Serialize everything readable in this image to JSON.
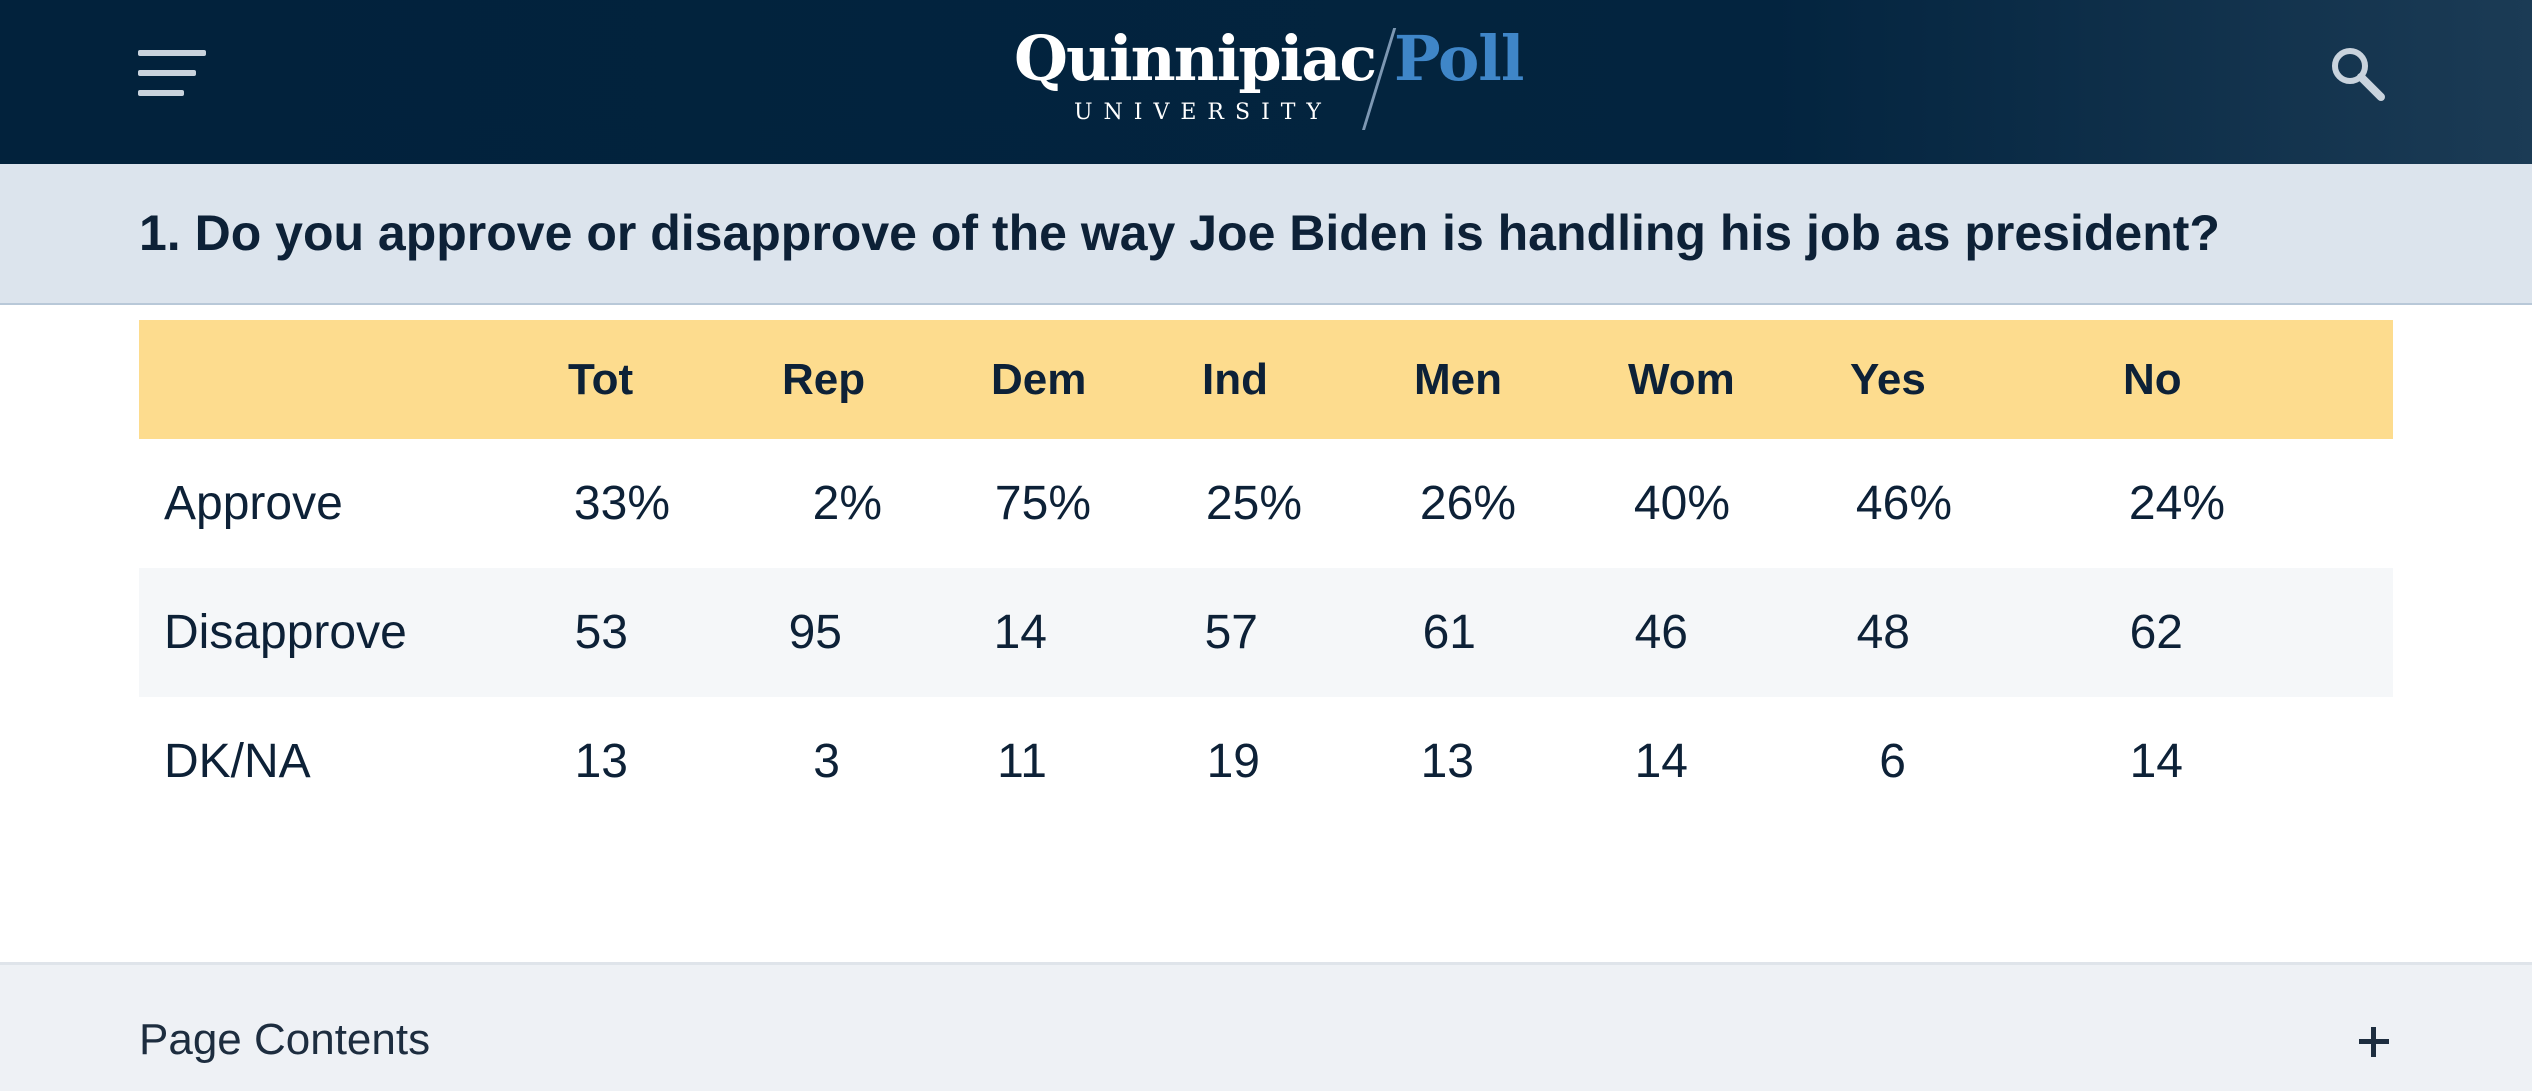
{
  "header": {
    "logo_word": "Quinnipiac",
    "logo_sub": "UNIVERSITY",
    "logo_poll": "Poll"
  },
  "icons": {
    "menu": "hamburger-menu-icon",
    "search": "search-icon",
    "expand": "plus-icon"
  },
  "colors": {
    "header_bg": "#02223c",
    "poll_accent": "#3f86c8",
    "question_band": "#dce4ed",
    "table_header_bg": "#fddc8e",
    "alt_row_bg": "#f5f7f9",
    "text": "#0d2137"
  },
  "question": {
    "text": "1. Do you approve or disapprove of the way Joe Biden is handling his job as president?"
  },
  "table": {
    "columns": [
      "Tot",
      "Rep",
      "Dem",
      "Ind",
      "Men",
      "Wom",
      "Yes",
      "No"
    ],
    "rows": [
      {
        "label": "Approve",
        "values": [
          "33%",
          "2%",
          "75%",
          "25%",
          "26%",
          "40%",
          "46%",
          "24%"
        ]
      },
      {
        "label": "Disapprove",
        "values": [
          "53",
          "95",
          "14",
          "57",
          "61",
          "46",
          "48",
          "62"
        ]
      },
      {
        "label": "DK/NA",
        "values": [
          "13",
          "3",
          "11",
          "19",
          "13",
          "14",
          "6",
          "14"
        ]
      }
    ]
  },
  "page_contents": {
    "label": "Page Contents"
  }
}
